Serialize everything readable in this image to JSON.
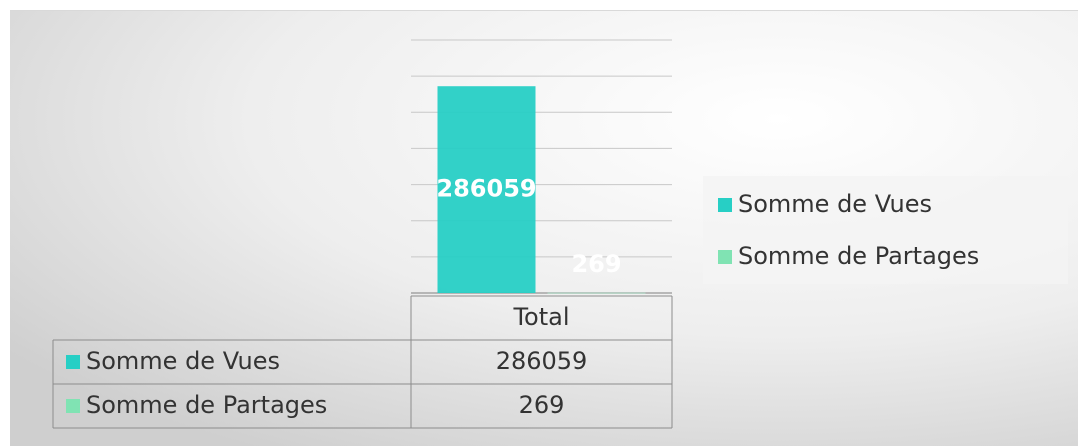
{
  "chart_data": {
    "type": "bar",
    "categories": [
      "Total"
    ],
    "series": [
      {
        "name": "Somme de Vues",
        "color": "#27cfc5",
        "values": [
          286059
        ]
      },
      {
        "name": "Somme de Partages",
        "color": "#80e3b3",
        "values": [
          269
        ]
      }
    ],
    "ylim": [
      0,
      350000
    ],
    "yticks": [
      0,
      50000,
      100000,
      150000,
      200000,
      250000,
      300000,
      350000
    ],
    "grid": true,
    "legend": "right",
    "data_table": true
  }
}
